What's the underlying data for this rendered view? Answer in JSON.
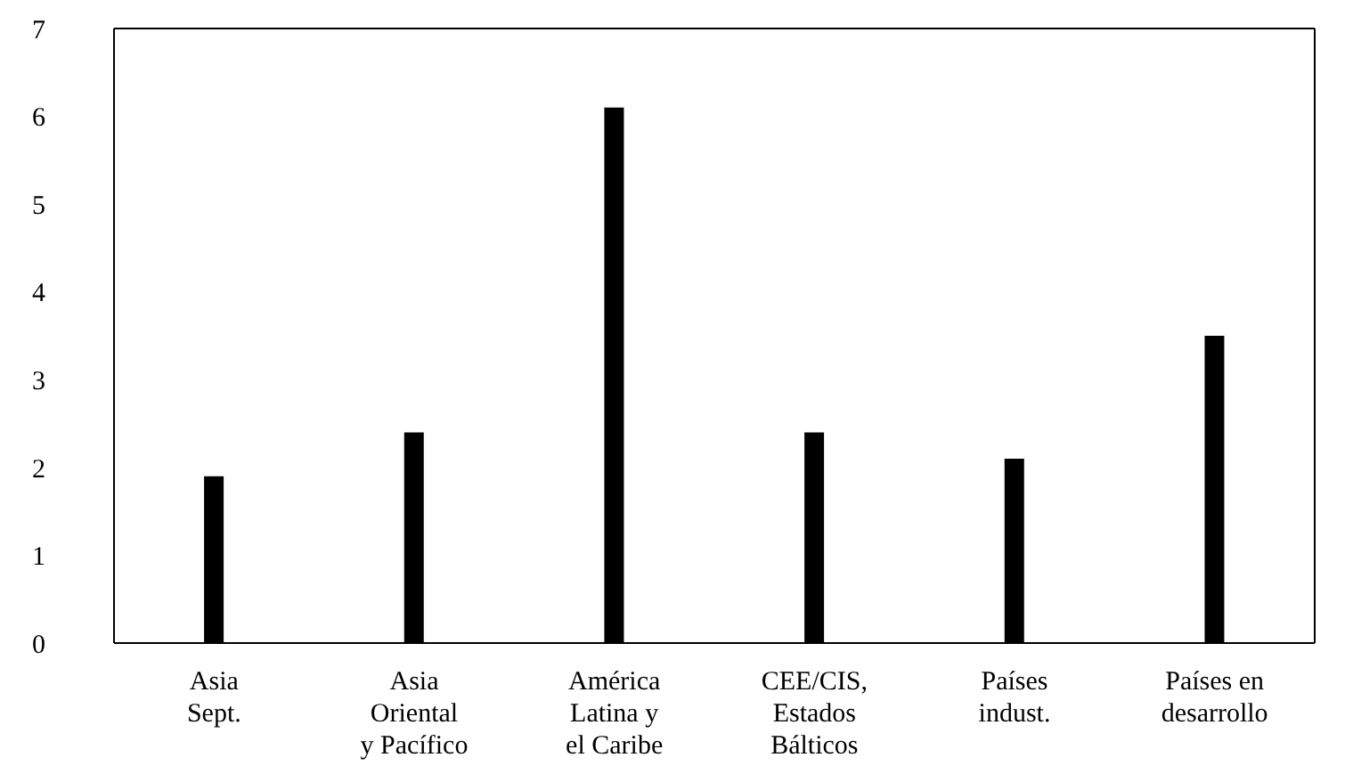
{
  "chart_data": {
    "type": "bar",
    "categories": [
      "Asia\nSept.",
      "Asia\nOriental\ny Pacífico",
      "América\nLatina y\nel Caribe",
      "CEE/CIS,\nEstados\nBálticos",
      "Países\nindust.",
      "Países en\ndesarrollo"
    ],
    "values": [
      1.9,
      2.4,
      6.1,
      2.4,
      2.1,
      3.5
    ],
    "color": "#000000",
    "ylim": [
      0,
      7
    ],
    "yticks": [
      0,
      1,
      2,
      3,
      4,
      5,
      6,
      7
    ],
    "grid": false,
    "legend": false
  }
}
